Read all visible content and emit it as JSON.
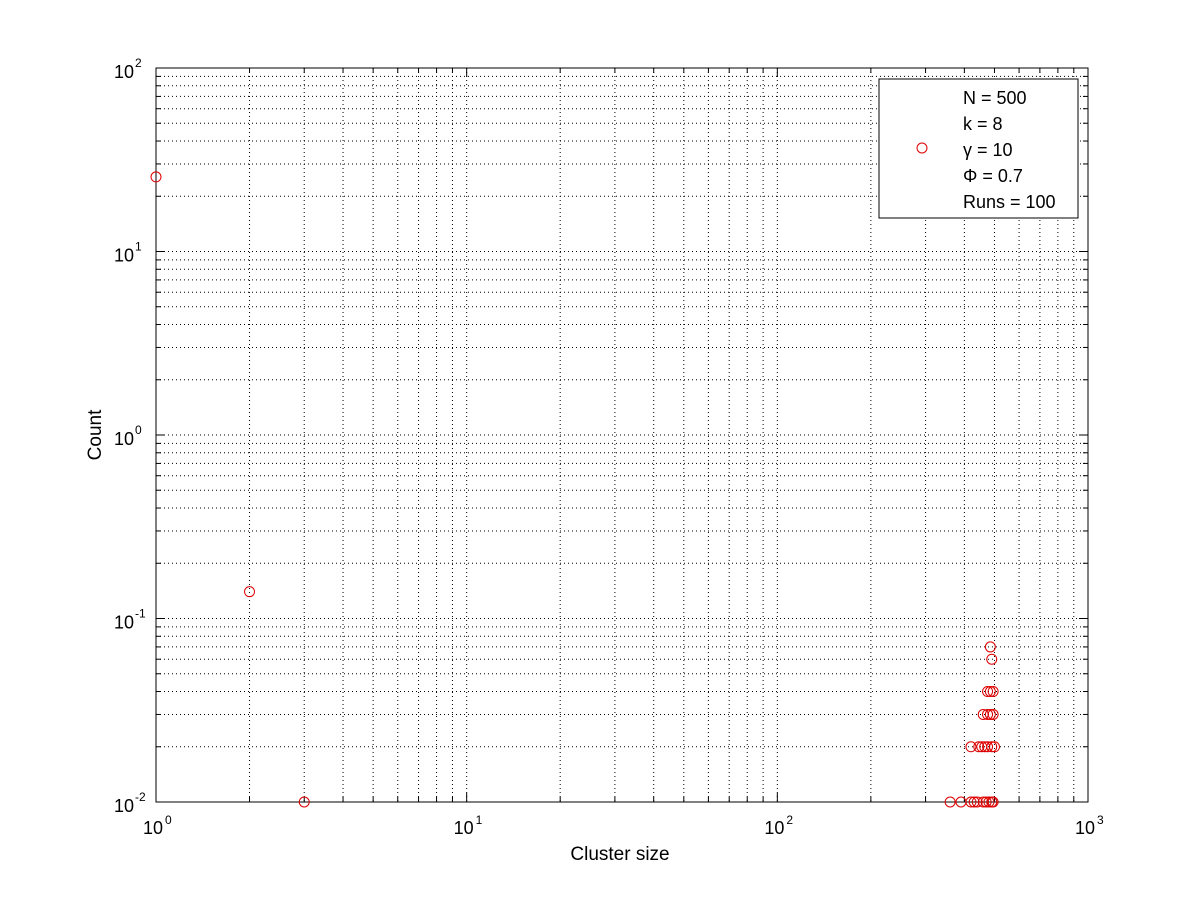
{
  "chart_data": {
    "type": "scatter",
    "xlabel": "Cluster size",
    "ylabel": "Count",
    "xscale": "log",
    "yscale": "log",
    "xlim": [
      1,
      1000
    ],
    "ylim": [
      0.01,
      100
    ],
    "grid": true,
    "legend_position": "top-right",
    "x_ticks": [
      {
        "base": "10",
        "exp": "0"
      },
      {
        "base": "10",
        "exp": "1"
      },
      {
        "base": "10",
        "exp": "2"
      },
      {
        "base": "10",
        "exp": "3"
      }
    ],
    "y_ticks": [
      {
        "base": "10",
        "exp": "-2"
      },
      {
        "base": "10",
        "exp": "-1"
      },
      {
        "base": "10",
        "exp": "0"
      },
      {
        "base": "10",
        "exp": "1"
      },
      {
        "base": "10",
        "exp": "2"
      }
    ],
    "legend": [
      "N = 500",
      "k = 8",
      "γ = 10",
      "Φ = 0.7",
      "Runs = 100"
    ],
    "marker": "open-circle",
    "marker_color": "#dd0000",
    "points": [
      {
        "x": 1,
        "y": 25.5
      },
      {
        "x": 2,
        "y": 0.14
      },
      {
        "x": 3,
        "y": 0.01
      },
      {
        "x": 360,
        "y": 0.01
      },
      {
        "x": 390,
        "y": 0.01
      },
      {
        "x": 420,
        "y": 0.01
      },
      {
        "x": 430,
        "y": 0.01
      },
      {
        "x": 440,
        "y": 0.01
      },
      {
        "x": 460,
        "y": 0.01
      },
      {
        "x": 470,
        "y": 0.01
      },
      {
        "x": 480,
        "y": 0.01
      },
      {
        "x": 490,
        "y": 0.01
      },
      {
        "x": 495,
        "y": 0.01
      },
      {
        "x": 420,
        "y": 0.02
      },
      {
        "x": 445,
        "y": 0.02
      },
      {
        "x": 455,
        "y": 0.02
      },
      {
        "x": 465,
        "y": 0.02
      },
      {
        "x": 475,
        "y": 0.02
      },
      {
        "x": 490,
        "y": 0.02
      },
      {
        "x": 500,
        "y": 0.02
      },
      {
        "x": 460,
        "y": 0.03
      },
      {
        "x": 475,
        "y": 0.03
      },
      {
        "x": 485,
        "y": 0.03
      },
      {
        "x": 495,
        "y": 0.03
      },
      {
        "x": 475,
        "y": 0.04
      },
      {
        "x": 485,
        "y": 0.04
      },
      {
        "x": 495,
        "y": 0.04
      },
      {
        "x": 490,
        "y": 0.06
      },
      {
        "x": 485,
        "y": 0.07
      }
    ]
  }
}
